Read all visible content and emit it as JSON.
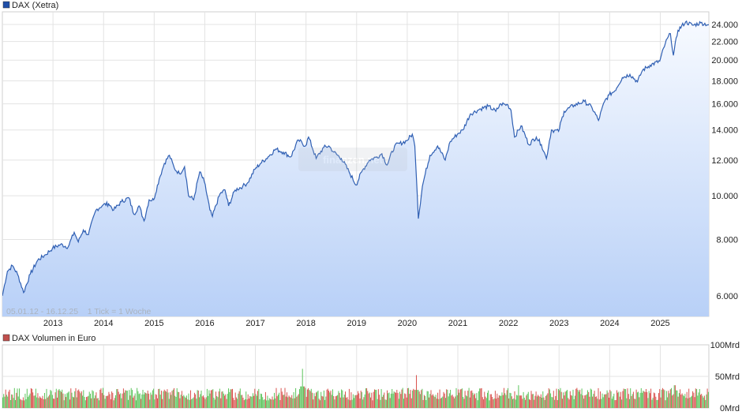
{
  "price_panel": {
    "legend_label": "DAX (Xetra)",
    "legend_color": "#1f4fa8",
    "range_note": "05.01.12 - 16.12.25    1 Tick = 1 Woche",
    "watermark": "finanzen.net"
  },
  "volume_panel": {
    "legend_label": "DAX Volumen in Euro",
    "legend_color": "#c0504d"
  },
  "colors": {
    "line": "#2f5fb3",
    "area_top": "#f7faff",
    "area_bottom": "#b8d0f7",
    "grid": "#e3e3e3",
    "volume_up": "#5cc45c",
    "volume_down": "#d9534f"
  },
  "chart_data": [
    {
      "type": "line",
      "title": "DAX (Xetra)",
      "scale": "log",
      "ylim": [
        5400,
        25600
      ],
      "xlim": [
        2012.0,
        2025.96
      ],
      "grid": true,
      "legend_position": "top-left",
      "x_ticks": [
        "2013",
        "2014",
        "2015",
        "2016",
        "2017",
        "2018",
        "2019",
        "2020",
        "2021",
        "2022",
        "2023",
        "2024",
        "2025"
      ],
      "y_ticks": [
        {
          "value": 6000,
          "label": "6.000"
        },
        {
          "value": 8000,
          "label": "8.000"
        },
        {
          "value": 10000,
          "label": "10.000"
        },
        {
          "value": 12000,
          "label": "12.000"
        },
        {
          "value": 14000,
          "label": "14.000"
        },
        {
          "value": 16000,
          "label": "16.000"
        },
        {
          "value": 18000,
          "label": "18.000"
        },
        {
          "value": 20000,
          "label": "20.000"
        },
        {
          "value": 22000,
          "label": "22.000"
        },
        {
          "value": 24000,
          "label": "24.000"
        }
      ],
      "series": [
        {
          "name": "DAX (Xetra)",
          "points": [
            [
              2012.0,
              6000
            ],
            [
              2012.1,
              6800
            ],
            [
              2012.2,
              7000
            ],
            [
              2012.3,
              6700
            ],
            [
              2012.42,
              6100
            ],
            [
              2012.55,
              6700
            ],
            [
              2012.7,
              7200
            ],
            [
              2012.85,
              7400
            ],
            [
              2012.99,
              7650
            ],
            [
              2013.15,
              7800
            ],
            [
              2013.3,
              7700
            ],
            [
              2013.42,
              8300
            ],
            [
              2013.5,
              7900
            ],
            [
              2013.6,
              8400
            ],
            [
              2013.7,
              8200
            ],
            [
              2013.85,
              9300
            ],
            [
              2013.99,
              9550
            ],
            [
              2014.1,
              9600
            ],
            [
              2014.2,
              9300
            ],
            [
              2014.35,
              9700
            ],
            [
              2014.5,
              9900
            ],
            [
              2014.6,
              9100
            ],
            [
              2014.7,
              9500
            ],
            [
              2014.8,
              8800
            ],
            [
              2014.9,
              9800
            ],
            [
              2014.99,
              9800
            ],
            [
              2015.1,
              10900
            ],
            [
              2015.2,
              11800
            ],
            [
              2015.3,
              12300
            ],
            [
              2015.4,
              11500
            ],
            [
              2015.5,
              11200
            ],
            [
              2015.6,
              11600
            ],
            [
              2015.68,
              10000
            ],
            [
              2015.78,
              9800
            ],
            [
              2015.9,
              11300
            ],
            [
              2015.99,
              10750
            ],
            [
              2016.1,
              9300
            ],
            [
              2016.15,
              9000
            ],
            [
              2016.3,
              10100
            ],
            [
              2016.4,
              10300
            ],
            [
              2016.47,
              9500
            ],
            [
              2016.6,
              10300
            ],
            [
              2016.75,
              10500
            ],
            [
              2016.85,
              10700
            ],
            [
              2016.99,
              11450
            ],
            [
              2017.1,
              11800
            ],
            [
              2017.25,
              12200
            ],
            [
              2017.4,
              12700
            ],
            [
              2017.55,
              12500
            ],
            [
              2017.7,
              12200
            ],
            [
              2017.85,
              13300
            ],
            [
              2017.99,
              12900
            ],
            [
              2018.05,
              13500
            ],
            [
              2018.2,
              12100
            ],
            [
              2018.35,
              12800
            ],
            [
              2018.45,
              12900
            ],
            [
              2018.55,
              12500
            ],
            [
              2018.7,
              12100
            ],
            [
              2018.85,
              11300
            ],
            [
              2018.99,
              10560
            ],
            [
              2019.1,
              11300
            ],
            [
              2019.25,
              12000
            ],
            [
              2019.4,
              12200
            ],
            [
              2019.5,
              12400
            ],
            [
              2019.6,
              11700
            ],
            [
              2019.75,
              12900
            ],
            [
              2019.99,
              13250
            ],
            [
              2020.1,
              13700
            ],
            [
              2020.15,
              12900
            ],
            [
              2020.2,
              10000
            ],
            [
              2020.22,
              8900
            ],
            [
              2020.3,
              10500
            ],
            [
              2020.45,
              12300
            ],
            [
              2020.6,
              12900
            ],
            [
              2020.75,
              12000
            ],
            [
              2020.85,
              13200
            ],
            [
              2020.99,
              13700
            ],
            [
              2021.1,
              14000
            ],
            [
              2021.25,
              15200
            ],
            [
              2021.45,
              15600
            ],
            [
              2021.6,
              15800
            ],
            [
              2021.75,
              15400
            ],
            [
              2021.85,
              16000
            ],
            [
              2021.99,
              15900
            ],
            [
              2022.05,
              15500
            ],
            [
              2022.12,
              13500
            ],
            [
              2022.25,
              14300
            ],
            [
              2022.4,
              13000
            ],
            [
              2022.55,
              13500
            ],
            [
              2022.65,
              13000
            ],
            [
              2022.75,
              12100
            ],
            [
              2022.85,
              14000
            ],
            [
              2022.99,
              13900
            ],
            [
              2023.1,
              15400
            ],
            [
              2023.3,
              15900
            ],
            [
              2023.5,
              16200
            ],
            [
              2023.65,
              15700
            ],
            [
              2023.78,
              14700
            ],
            [
              2023.9,
              16200
            ],
            [
              2023.99,
              16750
            ],
            [
              2024.1,
              17100
            ],
            [
              2024.25,
              18300
            ],
            [
              2024.4,
              18600
            ],
            [
              2024.55,
              17900
            ],
            [
              2024.65,
              19000
            ],
            [
              2024.8,
              19500
            ],
            [
              2024.99,
              19900
            ],
            [
              2025.1,
              21800
            ],
            [
              2025.2,
              22900
            ],
            [
              2025.26,
              20500
            ],
            [
              2025.35,
              23300
            ],
            [
              2025.5,
              24300
            ],
            [
              2025.65,
              23900
            ],
            [
              2025.8,
              24200
            ],
            [
              2025.96,
              23960
            ]
          ]
        }
      ]
    },
    {
      "type": "bar",
      "title": "DAX Volumen in Euro",
      "ylim": [
        0,
        100
      ],
      "unit": "Mrd",
      "xlim": [
        2012.0,
        2025.96
      ],
      "y_ticks": [
        {
          "value": 0,
          "label": "0Mrd"
        },
        {
          "value": 50,
          "label": "50Mrd"
        },
        {
          "value": 100,
          "label": "100Mrd"
        }
      ],
      "bar_interval": "1 Woche",
      "typical_range": [
        12,
        32
      ],
      "peaks": [
        {
          "x": 2017.93,
          "value": 62
        },
        {
          "x": 2020.18,
          "value": 52
        },
        {
          "x": 2022.2,
          "value": 36
        },
        {
          "x": 2025.28,
          "value": 36
        }
      ]
    }
  ]
}
